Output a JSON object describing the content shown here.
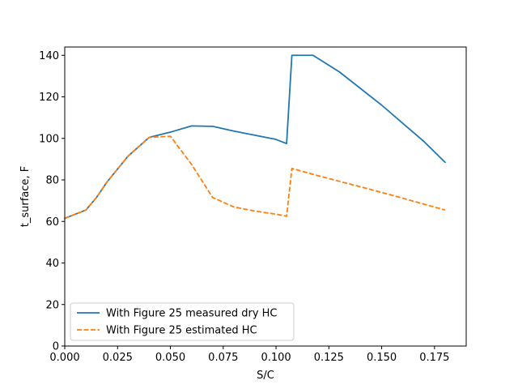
{
  "chart_data": {
    "type": "line",
    "title": "",
    "xlabel": "S/C",
    "ylabel": "t_surface, F",
    "xlim": [
      0.0,
      0.19
    ],
    "ylim": [
      0,
      144
    ],
    "xticks": [
      0.0,
      0.025,
      0.05,
      0.075,
      0.1,
      0.125,
      0.15,
      0.175
    ],
    "xtick_labels": [
      "0.000",
      "0.025",
      "0.050",
      "0.075",
      "0.100",
      "0.125",
      "0.150",
      "0.175"
    ],
    "yticks": [
      0,
      20,
      40,
      60,
      80,
      100,
      120,
      140
    ],
    "ytick_labels": [
      "0",
      "20",
      "40",
      "60",
      "80",
      "100",
      "120",
      "140"
    ],
    "grid": false,
    "legend_position": "lower-left",
    "series": [
      {
        "name": "With Figure 25 measured dry HC",
        "color": "#1f77b4",
        "style": "solid",
        "x": [
          0.0,
          0.01,
          0.015,
          0.02,
          0.03,
          0.04,
          0.05,
          0.06,
          0.07,
          0.08,
          0.09,
          0.1,
          0.105,
          0.1075,
          0.1175,
          0.13,
          0.15,
          0.17,
          0.18
        ],
        "y": [
          61.5,
          65.5,
          71.5,
          79,
          91.5,
          100.5,
          103,
          106,
          105.8,
          103.5,
          101.5,
          99.5,
          97.5,
          140,
          140,
          132,
          116,
          98.5,
          88.5
        ]
      },
      {
        "name": "With Figure 25 estimated HC",
        "color": "#ff7f0e",
        "style": "dashed",
        "x": [
          0.0,
          0.01,
          0.015,
          0.02,
          0.03,
          0.04,
          0.05,
          0.06,
          0.07,
          0.08,
          0.09,
          0.1,
          0.105,
          0.1075,
          0.12,
          0.15,
          0.18
        ],
        "y": [
          61.5,
          65.5,
          71.5,
          79,
          91.5,
          100.5,
          101,
          87.5,
          71.5,
          67,
          65,
          63.5,
          62.5,
          85.5,
          82,
          74,
          65.5
        ]
      }
    ]
  }
}
